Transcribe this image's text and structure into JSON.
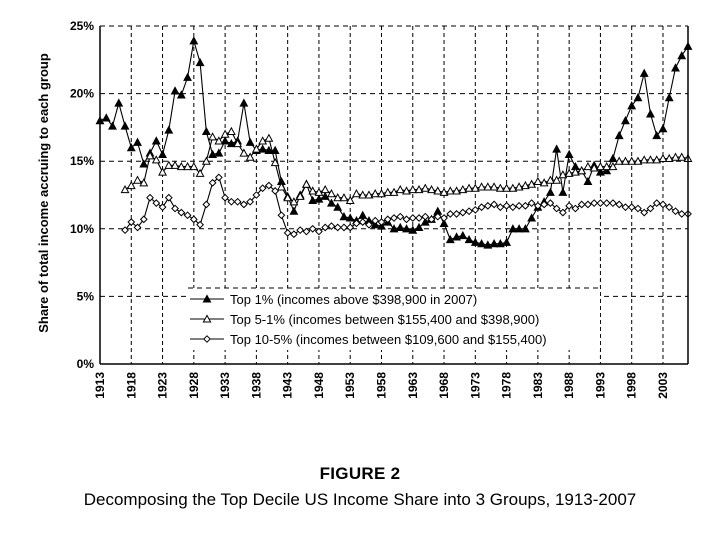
{
  "figure": {
    "label": "FIGURE 2",
    "title": "Decomposing the Top Decile US Income Share into 3 Groups, 1913-2007"
  },
  "chart_data": {
    "type": "line",
    "title": "",
    "xlabel": "",
    "ylabel": "Share of total income accruing to each group",
    "xlim": [
      1913,
      2007
    ],
    "ylim": [
      0,
      25
    ],
    "x_ticks": [
      "1913",
      "1918",
      "1923",
      "1928",
      "1933",
      "1938",
      "1943",
      "1948",
      "1953",
      "1958",
      "1963",
      "1968",
      "1973",
      "1978",
      "1983",
      "1988",
      "1993",
      "1998",
      "2003"
    ],
    "y_ticks": [
      "0%",
      "5%",
      "10%",
      "15%",
      "20%",
      "25%"
    ],
    "grid": "dashed horizontal lines at each y tick",
    "legend": "bottom-center",
    "series": [
      {
        "name": "Top 1% (incomes above $398,900 in 2007)",
        "marker": "filled-triangle",
        "x": [
          1913,
          1914,
          1915,
          1916,
          1917,
          1918,
          1919,
          1920,
          1921,
          1922,
          1923,
          1924,
          1925,
          1926,
          1927,
          1928,
          1929,
          1930,
          1931,
          1932,
          1933,
          1934,
          1935,
          1936,
          1937,
          1938,
          1939,
          1940,
          1941,
          1942,
          1943,
          1944,
          1945,
          1946,
          1947,
          1948,
          1949,
          1950,
          1951,
          1952,
          1953,
          1954,
          1955,
          1956,
          1957,
          1958,
          1959,
          1960,
          1961,
          1962,
          1963,
          1964,
          1965,
          1966,
          1967,
          1968,
          1969,
          1970,
          1971,
          1972,
          1973,
          1974,
          1975,
          1976,
          1977,
          1978,
          1979,
          1980,
          1981,
          1982,
          1983,
          1984,
          1985,
          1986,
          1987,
          1988,
          1989,
          1990,
          1991,
          1992,
          1993,
          1994,
          1995,
          1996,
          1997,
          1998,
          1999,
          2000,
          2001,
          2002,
          2003,
          2004,
          2005,
          2006,
          2007
        ],
        "values": [
          18.0,
          18.2,
          17.6,
          19.3,
          17.6,
          16.0,
          16.4,
          14.8,
          15.6,
          16.5,
          15.5,
          17.3,
          20.2,
          19.9,
          21.2,
          23.9,
          22.3,
          17.2,
          15.5,
          15.6,
          16.5,
          16.3,
          16.5,
          19.3,
          16.4,
          15.8,
          15.9,
          15.8,
          15.8,
          13.5,
          12.4,
          11.3,
          12.5,
          13.3,
          12.1,
          12.2,
          12.4,
          11.9,
          11.6,
          10.9,
          10.8,
          10.6,
          11.0,
          10.6,
          10.3,
          10.2,
          10.5,
          10.0,
          10.1,
          10.0,
          9.9,
          10.1,
          10.5,
          10.7,
          11.3,
          10.4,
          9.2,
          9.4,
          9.5,
          9.2,
          9.0,
          8.9,
          8.8,
          8.9,
          8.9,
          9.0,
          10.0,
          10.0,
          10.0,
          10.8,
          11.6,
          12.0,
          12.7,
          15.9,
          12.7,
          15.5,
          14.6,
          14.3,
          13.5,
          14.7,
          14.2,
          14.3,
          15.2,
          16.9,
          18.0,
          19.1,
          19.7,
          21.5,
          18.5,
          16.9,
          17.4,
          19.7,
          21.9,
          22.8,
          23.5
        ]
      },
      {
        "name": "Top 5-1% (incomes between $155,400 and $398,900)",
        "marker": "open-triangle",
        "x": [
          1917,
          1918,
          1919,
          1920,
          1921,
          1922,
          1923,
          1924,
          1925,
          1926,
          1927,
          1928,
          1929,
          1930,
          1931,
          1932,
          1933,
          1934,
          1935,
          1936,
          1937,
          1938,
          1939,
          1940,
          1941,
          1942,
          1943,
          1944,
          1945,
          1946,
          1947,
          1948,
          1949,
          1950,
          1951,
          1952,
          1953,
          1954,
          1955,
          1956,
          1957,
          1958,
          1959,
          1960,
          1961,
          1962,
          1963,
          1964,
          1965,
          1966,
          1967,
          1968,
          1969,
          1970,
          1971,
          1972,
          1973,
          1974,
          1975,
          1976,
          1977,
          1978,
          1979,
          1980,
          1981,
          1982,
          1983,
          1984,
          1985,
          1986,
          1987,
          1988,
          1989,
          1990,
          1991,
          1992,
          1993,
          1994,
          1995,
          1996,
          1997,
          1998,
          1999,
          2000,
          2001,
          2002,
          2003,
          2004,
          2005,
          2006,
          2007
        ],
        "values": [
          12.9,
          13.2,
          13.6,
          13.4,
          15.4,
          15.1,
          14.2,
          14.7,
          14.7,
          14.6,
          14.6,
          14.6,
          14.1,
          15.0,
          16.8,
          16.5,
          17.0,
          17.2,
          16.3,
          15.6,
          15.3,
          15.9,
          16.5,
          16.7,
          14.9,
          13.1,
          12.3,
          12.0,
          12.4,
          13.3,
          12.8,
          12.7,
          12.9,
          12.6,
          12.3,
          12.3,
          12.1,
          12.6,
          12.5,
          12.5,
          12.6,
          12.6,
          12.7,
          12.7,
          12.9,
          12.8,
          12.9,
          12.9,
          13.0,
          12.9,
          12.8,
          12.7,
          12.8,
          12.8,
          12.9,
          13.0,
          13.0,
          13.1,
          13.1,
          13.1,
          13.0,
          13.0,
          13.0,
          13.1,
          13.2,
          13.3,
          13.5,
          13.4,
          13.6,
          13.6,
          14.0,
          14.1,
          14.2,
          14.3,
          14.6,
          14.5,
          14.6,
          14.6,
          14.6,
          15.0,
          15.0,
          15.0,
          15.0,
          15.1,
          15.1,
          15.1,
          15.2,
          15.2,
          15.3,
          15.3,
          15.2
        ]
      },
      {
        "name": "Top 10-5% (incomes between $109,600 and $155,400)",
        "marker": "open-diamond",
        "x": [
          1917,
          1918,
          1919,
          1920,
          1921,
          1922,
          1923,
          1924,
          1925,
          1926,
          1927,
          1928,
          1929,
          1930,
          1931,
          1932,
          1933,
          1934,
          1935,
          1936,
          1937,
          1938,
          1939,
          1940,
          1941,
          1942,
          1943,
          1944,
          1945,
          1946,
          1947,
          1948,
          1949,
          1950,
          1951,
          1952,
          1953,
          1954,
          1955,
          1956,
          1957,
          1958,
          1959,
          1960,
          1961,
          1962,
          1963,
          1964,
          1965,
          1966,
          1967,
          1968,
          1969,
          1970,
          1971,
          1972,
          1973,
          1974,
          1975,
          1976,
          1977,
          1978,
          1979,
          1980,
          1981,
          1982,
          1983,
          1984,
          1985,
          1986,
          1987,
          1988,
          1989,
          1990,
          1991,
          1992,
          1993,
          1994,
          1995,
          1996,
          1997,
          1998,
          1999,
          2000,
          2001,
          2002,
          2003,
          2004,
          2005,
          2006,
          2007
        ],
        "values": [
          9.9,
          10.5,
          10.1,
          10.7,
          12.3,
          11.9,
          11.6,
          12.3,
          11.5,
          11.2,
          11.0,
          10.7,
          10.3,
          11.8,
          13.4,
          13.8,
          12.3,
          12.0,
          12.0,
          11.8,
          12.0,
          12.5,
          13.0,
          13.2,
          12.8,
          11.0,
          9.7,
          9.6,
          9.9,
          9.8,
          10.0,
          9.8,
          10.1,
          10.2,
          10.1,
          10.1,
          10.1,
          10.4,
          10.5,
          10.3,
          10.6,
          10.5,
          10.7,
          10.8,
          10.9,
          10.7,
          10.8,
          10.8,
          10.9,
          10.7,
          10.9,
          10.8,
          11.1,
          11.1,
          11.2,
          11.3,
          11.4,
          11.6,
          11.7,
          11.8,
          11.6,
          11.7,
          11.6,
          11.7,
          11.7,
          11.9,
          11.7,
          11.8,
          11.9,
          11.5,
          11.2,
          11.7,
          11.5,
          11.8,
          11.8,
          11.9,
          11.9,
          11.9,
          11.9,
          11.8,
          11.6,
          11.6,
          11.5,
          11.2,
          11.5,
          11.9,
          11.8,
          11.6,
          11.3,
          11.1,
          11.1
        ]
      }
    ]
  }
}
